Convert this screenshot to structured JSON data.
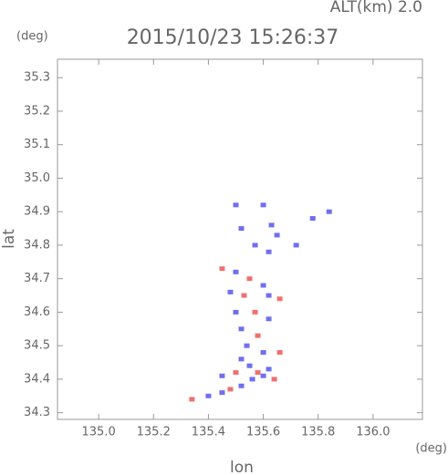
{
  "chart_data": {
    "type": "scatter",
    "title": "2015/10/23 15:26:37",
    "subtitle": "ALT(km)  2.0",
    "y_unit": "(deg)",
    "x_unit": "(deg)",
    "xlabel": "lon",
    "ylabel": "lat",
    "xlim": [
      134.85,
      136.18
    ],
    "ylim": [
      34.28,
      35.355
    ],
    "xticks": [
      {
        "value": 135.0,
        "label": "135.0"
      },
      135.2,
      135.4,
      135.6,
      135.8,
      {
        "value": 136.0,
        "label": "136.0"
      }
    ],
    "yticks": [
      34.3,
      34.4,
      34.5,
      34.6,
      34.7,
      34.8,
      34.9,
      {
        "value": 35.0,
        "label": "35.0"
      },
      35.1,
      35.2,
      35.3
    ],
    "grid": false,
    "x": [
      135.6,
      135.5,
      135.52,
      135.63,
      135.65,
      135.57,
      135.62,
      135.72,
      135.84,
      135.78,
      135.45,
      135.5,
      135.55,
      135.6,
      135.48,
      135.53,
      135.62,
      135.66,
      135.5,
      135.57,
      135.62,
      135.52,
      135.58,
      135.54,
      135.6,
      135.66,
      135.52,
      135.55,
      135.62,
      135.5,
      135.6,
      135.56,
      135.64,
      135.48,
      135.45,
      135.4,
      135.34,
      135.52,
      135.45,
      135.58
    ],
    "values": [
      34.92,
      34.92,
      34.85,
      34.86,
      34.83,
      34.8,
      34.78,
      34.8,
      34.9,
      34.88,
      34.73,
      34.72,
      34.7,
      34.68,
      34.66,
      34.65,
      34.65,
      34.64,
      34.6,
      34.6,
      34.58,
      34.55,
      34.53,
      34.5,
      34.48,
      34.48,
      34.46,
      34.44,
      34.43,
      34.42,
      34.41,
      34.4,
      34.4,
      34.37,
      34.36,
      34.35,
      34.34,
      34.38,
      34.41,
      34.42
    ],
    "colors": [
      "#6f6ff0",
      "#6f6ff0",
      "#6f6ff0",
      "#6f6ff0",
      "#6f6ff0",
      "#6f6ff0",
      "#6f6ff0",
      "#6f6ff0",
      "#6f6ff0",
      "#6f6ff0",
      "#f07070",
      "#6f6ff0",
      "#f07070",
      "#6f6ff0",
      "#6f6ff0",
      "#f07070",
      "#6f6ff0",
      "#f07070",
      "#6f6ff0",
      "#f07070",
      "#6f6ff0",
      "#6f6ff0",
      "#f07070",
      "#6f6ff0",
      "#6f6ff0",
      "#f07070",
      "#6f6ff0",
      "#6f6ff0",
      "#6f6ff0",
      "#f07070",
      "#6f6ff0",
      "#6f6ff0",
      "#f07070",
      "#f07070",
      "#6f6ff0",
      "#6f6ff0",
      "#f07070",
      "#6f6ff0",
      "#6f6ff0",
      "#f07070"
    ]
  }
}
